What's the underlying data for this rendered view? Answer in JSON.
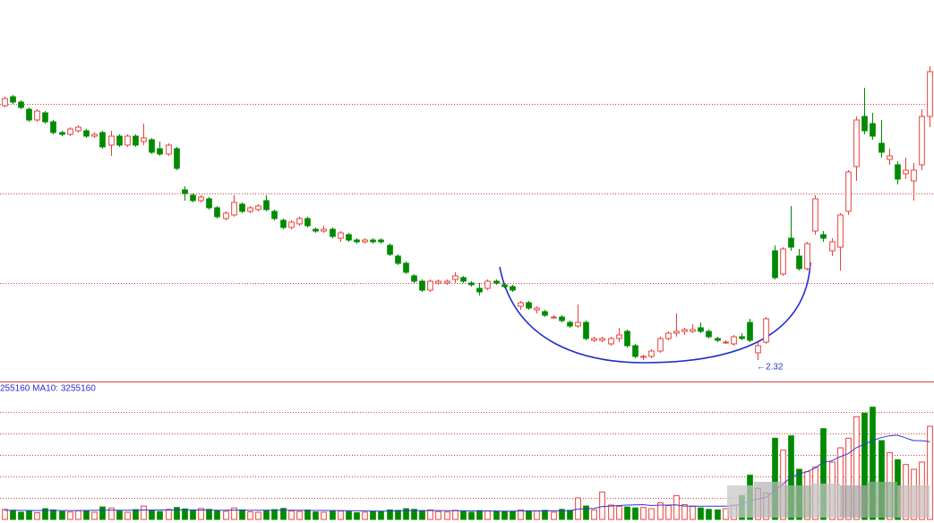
{
  "chart_data": {
    "type": "candlestick",
    "ohlc": [
      [
        3.74,
        3.79,
        3.73,
        3.78
      ],
      [
        3.79,
        3.8,
        3.75,
        3.76
      ],
      [
        3.76,
        3.77,
        3.72,
        3.73
      ],
      [
        3.72,
        3.73,
        3.65,
        3.66
      ],
      [
        3.66,
        3.72,
        3.65,
        3.71
      ],
      [
        3.7,
        3.71,
        3.64,
        3.65
      ],
      [
        3.65,
        3.66,
        3.58,
        3.59
      ],
      [
        3.59,
        3.6,
        3.57,
        3.58
      ],
      [
        3.58,
        3.62,
        3.57,
        3.61
      ],
      [
        3.6,
        3.63,
        3.59,
        3.62
      ],
      [
        3.6,
        3.61,
        3.56,
        3.57
      ],
      [
        3.57,
        3.59,
        3.56,
        3.58
      ],
      [
        3.59,
        3.6,
        3.5,
        3.51
      ],
      [
        3.52,
        3.6,
        3.46,
        3.57
      ],
      [
        3.57,
        3.58,
        3.51,
        3.52
      ],
      [
        3.52,
        3.58,
        3.51,
        3.57
      ],
      [
        3.57,
        3.58,
        3.51,
        3.52
      ],
      [
        3.54,
        3.64,
        3.52,
        3.56
      ],
      [
        3.55,
        3.56,
        3.47,
        3.48
      ],
      [
        3.5,
        3.54,
        3.46,
        3.47
      ],
      [
        3.47,
        3.53,
        3.46,
        3.52
      ],
      [
        3.5,
        3.51,
        3.38,
        3.39
      ],
      [
        3.27,
        3.29,
        3.21,
        3.25
      ],
      [
        3.24,
        3.25,
        3.2,
        3.21
      ],
      [
        3.21,
        3.24,
        3.2,
        3.23
      ],
      [
        3.22,
        3.23,
        3.16,
        3.17
      ],
      [
        3.17,
        3.18,
        3.11,
        3.12
      ],
      [
        3.11,
        3.15,
        3.1,
        3.14
      ],
      [
        3.13,
        3.24,
        3.12,
        3.2
      ],
      [
        3.19,
        3.2,
        3.14,
        3.15
      ],
      [
        3.15,
        3.18,
        3.14,
        3.17
      ],
      [
        3.16,
        3.19,
        3.15,
        3.18
      ],
      [
        3.21,
        3.24,
        3.15,
        3.16
      ],
      [
        3.15,
        3.16,
        3.1,
        3.11
      ],
      [
        3.1,
        3.11,
        3.05,
        3.06
      ],
      [
        3.06,
        3.1,
        3.05,
        3.09
      ],
      [
        3.08,
        3.12,
        3.07,
        3.11
      ],
      [
        3.11,
        3.12,
        3.06,
        3.07
      ],
      [
        3.05,
        3.06,
        3.03,
        3.04
      ],
      [
        3.04,
        3.07,
        3.03,
        3.05
      ],
      [
        3.05,
        3.06,
        3.0,
        3.01
      ],
      [
        3.0,
        3.04,
        2.98,
        3.03
      ],
      [
        3.02,
        3.03,
        2.98,
        2.99
      ],
      [
        2.99,
        3.0,
        2.97,
        2.98
      ],
      [
        2.98,
        3.0,
        2.97,
        2.99
      ],
      [
        2.99,
        3.0,
        2.97,
        2.98
      ],
      [
        2.99,
        3.0,
        2.97,
        2.98
      ],
      [
        2.96,
        2.97,
        2.9,
        2.91
      ],
      [
        2.9,
        2.91,
        2.85,
        2.86
      ],
      [
        2.86,
        2.87,
        2.8,
        2.81
      ],
      [
        2.79,
        2.8,
        2.75,
        2.76
      ],
      [
        2.76,
        2.77,
        2.7,
        2.71
      ],
      [
        2.71,
        2.77,
        2.7,
        2.76
      ],
      [
        2.75,
        2.77,
        2.74,
        2.76
      ],
      [
        2.75,
        2.77,
        2.74,
        2.76
      ],
      [
        2.77,
        2.81,
        2.75,
        2.79
      ],
      [
        2.78,
        2.79,
        2.75,
        2.76
      ],
      [
        2.75,
        2.76,
        2.73,
        2.74
      ],
      [
        2.72,
        2.75,
        2.68,
        2.7
      ],
      [
        2.72,
        2.77,
        2.71,
        2.76
      ],
      [
        2.76,
        2.77,
        2.74,
        2.75
      ],
      [
        2.74,
        2.75,
        2.72,
        2.73
      ],
      [
        2.73,
        2.74,
        2.7,
        2.71
      ],
      [
        2.62,
        2.65,
        2.6,
        2.64
      ],
      [
        2.64,
        2.65,
        2.6,
        2.61
      ],
      [
        2.6,
        2.62,
        2.58,
        2.61
      ],
      [
        2.59,
        2.6,
        2.56,
        2.57
      ],
      [
        2.56,
        2.57,
        2.55,
        2.56
      ],
      [
        2.56,
        2.57,
        2.53,
        2.54
      ],
      [
        2.53,
        2.54,
        2.5,
        2.51
      ],
      [
        2.51,
        2.63,
        2.5,
        2.53
      ],
      [
        2.53,
        2.54,
        2.43,
        2.44
      ],
      [
        2.43,
        2.45,
        2.42,
        2.44
      ],
      [
        2.43,
        2.45,
        2.42,
        2.44
      ],
      [
        2.41,
        2.45,
        2.4,
        2.44
      ],
      [
        2.44,
        2.5,
        2.42,
        2.46
      ],
      [
        2.48,
        2.49,
        2.39,
        2.4
      ],
      [
        2.4,
        2.41,
        2.33,
        2.34
      ],
      [
        2.34,
        2.35,
        2.32,
        2.34
      ],
      [
        2.34,
        2.38,
        2.33,
        2.37
      ],
      [
        2.37,
        2.45,
        2.36,
        2.44
      ],
      [
        2.44,
        2.48,
        2.43,
        2.47
      ],
      [
        2.47,
        2.58,
        2.45,
        2.48
      ],
      [
        2.48,
        2.5,
        2.46,
        2.49
      ],
      [
        2.48,
        2.52,
        2.47,
        2.49
      ],
      [
        2.5,
        2.53,
        2.47,
        2.48
      ],
      [
        2.48,
        2.49,
        2.44,
        2.45
      ],
      [
        2.44,
        2.45,
        2.42,
        2.43
      ],
      [
        2.42,
        2.43,
        2.41,
        2.42
      ],
      [
        2.41,
        2.46,
        2.4,
        2.45
      ],
      [
        2.45,
        2.47,
        2.43,
        2.44
      ],
      [
        2.53,
        2.55,
        2.42,
        2.43
      ],
      [
        2.36,
        2.42,
        2.32,
        2.4
      ],
      [
        2.42,
        2.56,
        2.41,
        2.55
      ],
      [
        2.93,
        2.96,
        2.77,
        2.78
      ],
      [
        2.8,
        2.95,
        2.79,
        2.94
      ],
      [
        3.0,
        3.18,
        2.93,
        2.95
      ],
      [
        2.9,
        2.94,
        2.82,
        2.83
      ],
      [
        2.83,
        2.98,
        2.82,
        2.97
      ],
      [
        3.04,
        3.24,
        3.02,
        3.22
      ],
      [
        3.02,
        3.04,
        2.98,
        3.0
      ],
      [
        2.93,
        3.0,
        2.9,
        2.98
      ],
      [
        2.95,
        3.14,
        2.82,
        3.13
      ],
      [
        3.15,
        3.38,
        3.13,
        3.37
      ],
      [
        3.4,
        3.68,
        3.32,
        3.66
      ],
      [
        3.68,
        3.84,
        3.58,
        3.6
      ],
      [
        3.64,
        3.7,
        3.55,
        3.57
      ],
      [
        3.53,
        3.66,
        3.45,
        3.48
      ],
      [
        3.44,
        3.5,
        3.41,
        3.46
      ],
      [
        3.41,
        3.43,
        3.3,
        3.33
      ],
      [
        3.36,
        3.45,
        3.33,
        3.38
      ],
      [
        3.32,
        3.42,
        3.21,
        3.38
      ],
      [
        3.41,
        3.72,
        3.38,
        3.68
      ],
      [
        3.68,
        3.96,
        3.62,
        3.93
      ]
    ],
    "volume": [
      420000,
      380000,
      300000,
      350000,
      280000,
      450000,
      400000,
      330000,
      310000,
      360000,
      340000,
      300000,
      520000,
      480000,
      350000,
      300000,
      410000,
      560000,
      390000,
      330000,
      420000,
      500000,
      440000,
      380000,
      460000,
      420000,
      360000,
      340000,
      480000,
      400000,
      320000,
      300000,
      380000,
      410000,
      460000,
      350000,
      330000,
      390000,
      310000,
      300000,
      370000,
      350000,
      330000,
      280000,
      300000,
      340000,
      320000,
      400000,
      380000,
      450000,
      420000,
      360000,
      400000,
      330000,
      310000,
      380000,
      350000,
      300000,
      370000,
      360000,
      340000,
      330000,
      320000,
      400000,
      360000,
      350000,
      380000,
      300000,
      420000,
      380000,
      900000,
      560000,
      400000,
      1150000,
      600000,
      550000,
      520000,
      480000,
      500000,
      450000,
      700000,
      580000,
      1000000,
      620000,
      540000,
      480000,
      420000,
      400000,
      450000,
      600000,
      1000000,
      1850000,
      1300000,
      1100000,
      3400000,
      2900000,
      3500000,
      2100000,
      2000000,
      2200000,
      3800000,
      2400000,
      3000000,
      3400000,
      4300000,
      4450000,
      4700000,
      3300000,
      2800000,
      2500000,
      2300000,
      2100000,
      2400000,
      3900000
    ],
    "ma10": [
      380000,
      382000,
      378000,
      375000,
      372000,
      374000,
      376000,
      373000,
      370000,
      372000,
      374000,
      378000,
      385000,
      390000,
      388000,
      384000,
      386000,
      392000,
      395000,
      392000,
      394000,
      398000,
      400000,
      396000,
      394000,
      392000,
      388000,
      386000,
      390000,
      392000,
      388000,
      384000,
      382000,
      385000,
      388000,
      386000,
      384000,
      380000,
      376000,
      374000,
      372000,
      370000,
      368000,
      360000,
      356000,
      352000,
      350000,
      352000,
      356000,
      362000,
      366000,
      370000,
      372000,
      370000,
      366000,
      364000,
      360000,
      358000,
      356000,
      354000,
      352000,
      350000,
      350000,
      352000,
      356000,
      356000,
      358000,
      356000,
      360000,
      362000,
      430000,
      450000,
      460000,
      540000,
      560000,
      580000,
      600000,
      610000,
      620000,
      580000,
      600000,
      600000,
      610000,
      560000,
      560000,
      550000,
      550000,
      550000,
      550000,
      570000,
      640000,
      770000,
      850000,
      920000,
      1200000,
      1450000,
      1750000,
      1900000,
      2000000,
      2150000,
      2400000,
      2450000,
      2620000,
      2750000,
      3000000,
      3150000,
      3300000,
      3420000,
      3500000,
      3530000,
      3420000,
      3300000,
      3300000,
      3255160
    ],
    "ylim": [
      2.205,
      4.33
    ],
    "price_grid": [
      2.75,
      3.25,
      3.75
    ],
    "volume_ylim": [
      0,
      5625000
    ],
    "volume_grid": [
      900000,
      1800000,
      2700000,
      3600000,
      4500000
    ],
    "volume_legend": "255160 MA10: 3255160",
    "low_label": "←2.32",
    "up_color": "#e8413c",
    "down_color": "#008a00",
    "ma_color": "#3535d8"
  }
}
